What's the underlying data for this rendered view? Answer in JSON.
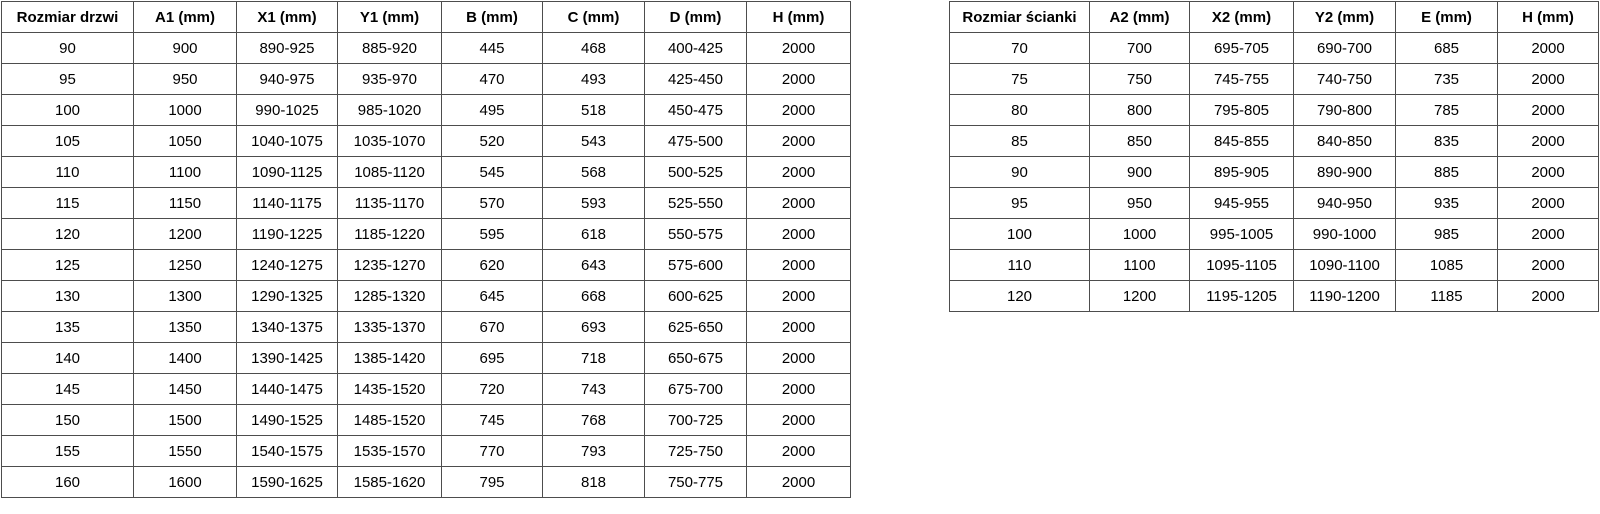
{
  "tables": [
    {
      "name": "door-size-table",
      "headers": [
        "Rozmiar drzwi",
        "A1 (mm)",
        "X1 (mm)",
        "Y1 (mm)",
        "B (mm)",
        "C (mm)",
        "D (mm)",
        "H (mm)"
      ],
      "rows": [
        [
          "90",
          "900",
          "890-925",
          "885-920",
          "445",
          "468",
          "400-425",
          "2000"
        ],
        [
          "95",
          "950",
          "940-975",
          "935-970",
          "470",
          "493",
          "425-450",
          "2000"
        ],
        [
          "100",
          "1000",
          "990-1025",
          "985-1020",
          "495",
          "518",
          "450-475",
          "2000"
        ],
        [
          "105",
          "1050",
          "1040-1075",
          "1035-1070",
          "520",
          "543",
          "475-500",
          "2000"
        ],
        [
          "110",
          "1100",
          "1090-1125",
          "1085-1120",
          "545",
          "568",
          "500-525",
          "2000"
        ],
        [
          "115",
          "1150",
          "1140-1175",
          "1135-1170",
          "570",
          "593",
          "525-550",
          "2000"
        ],
        [
          "120",
          "1200",
          "1190-1225",
          "1185-1220",
          "595",
          "618",
          "550-575",
          "2000"
        ],
        [
          "125",
          "1250",
          "1240-1275",
          "1235-1270",
          "620",
          "643",
          "575-600",
          "2000"
        ],
        [
          "130",
          "1300",
          "1290-1325",
          "1285-1320",
          "645",
          "668",
          "600-625",
          "2000"
        ],
        [
          "135",
          "1350",
          "1340-1375",
          "1335-1370",
          "670",
          "693",
          "625-650",
          "2000"
        ],
        [
          "140",
          "1400",
          "1390-1425",
          "1385-1420",
          "695",
          "718",
          "650-675",
          "2000"
        ],
        [
          "145",
          "1450",
          "1440-1475",
          "1435-1520",
          "720",
          "743",
          "675-700",
          "2000"
        ],
        [
          "150",
          "1500",
          "1490-1525",
          "1485-1520",
          "745",
          "768",
          "700-725",
          "2000"
        ],
        [
          "155",
          "1550",
          "1540-1575",
          "1535-1570",
          "770",
          "793",
          "725-750",
          "2000"
        ],
        [
          "160",
          "1600",
          "1590-1625",
          "1585-1620",
          "795",
          "818",
          "750-775",
          "2000"
        ]
      ]
    },
    {
      "name": "wall-size-table",
      "headers": [
        "Rozmiar ścianki",
        "A2 (mm)",
        "X2 (mm)",
        "Y2 (mm)",
        "E (mm)",
        "H (mm)"
      ],
      "rows": [
        [
          "70",
          "700",
          "695-705",
          "690-700",
          "685",
          "2000"
        ],
        [
          "75",
          "750",
          "745-755",
          "740-750",
          "735",
          "2000"
        ],
        [
          "80",
          "800",
          "795-805",
          "790-800",
          "785",
          "2000"
        ],
        [
          "85",
          "850",
          "845-855",
          "840-850",
          "835",
          "2000"
        ],
        [
          "90",
          "900",
          "895-905",
          "890-900",
          "885",
          "2000"
        ],
        [
          "95",
          "950",
          "945-955",
          "940-950",
          "935",
          "2000"
        ],
        [
          "100",
          "1000",
          "995-1005",
          "990-1000",
          "985",
          "2000"
        ],
        [
          "110",
          "1100",
          "1095-1105",
          "1090-1100",
          "1085",
          "2000"
        ],
        [
          "120",
          "1200",
          "1195-1205",
          "1190-1200",
          "1185",
          "2000"
        ]
      ]
    }
  ]
}
